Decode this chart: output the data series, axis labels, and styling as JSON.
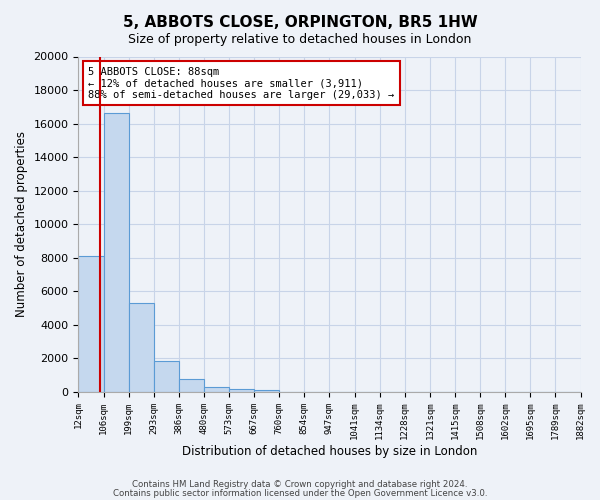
{
  "title": "5, ABBOTS CLOSE, ORPINGTON, BR5 1HW",
  "subtitle": "Size of property relative to detached houses in London",
  "xlabel": "Distribution of detached houses by size in London",
  "ylabel": "Number of detached properties",
  "bar_values": [
    8100,
    16600,
    5300,
    1800,
    750,
    280,
    150,
    80,
    0,
    0,
    0,
    0,
    0,
    0,
    0,
    0,
    0,
    0,
    0,
    0
  ],
  "categories": [
    "12sqm",
    "106sqm",
    "199sqm",
    "293sqm",
    "386sqm",
    "480sqm",
    "573sqm",
    "667sqm",
    "760sqm",
    "854sqm",
    "947sqm",
    "1041sqm",
    "1134sqm",
    "1228sqm",
    "1321sqm",
    "1415sqm",
    "1508sqm",
    "1602sqm",
    "1695sqm",
    "1789sqm",
    "1882sqm"
  ],
  "bar_color": "#c5d8ee",
  "bar_edge_color": "#5b9bd5",
  "vline_color": "#cc0000",
  "annotation_title": "5 ABBOTS CLOSE: 88sqm",
  "annotation_line1": "← 12% of detached houses are smaller (3,911)",
  "annotation_line2": "88% of semi-detached houses are larger (29,033) →",
  "annotation_box_color": "#ffffff",
  "annotation_box_edge": "#cc0000",
  "ylim": [
    0,
    20000
  ],
  "yticks": [
    0,
    2000,
    4000,
    6000,
    8000,
    10000,
    12000,
    14000,
    16000,
    18000,
    20000
  ],
  "footer1": "Contains HM Land Registry data © Crown copyright and database right 2024.",
  "footer2": "Contains public sector information licensed under the Open Government Licence v3.0.",
  "background_color": "#eef2f8",
  "grid_color": "#c8d4e8"
}
